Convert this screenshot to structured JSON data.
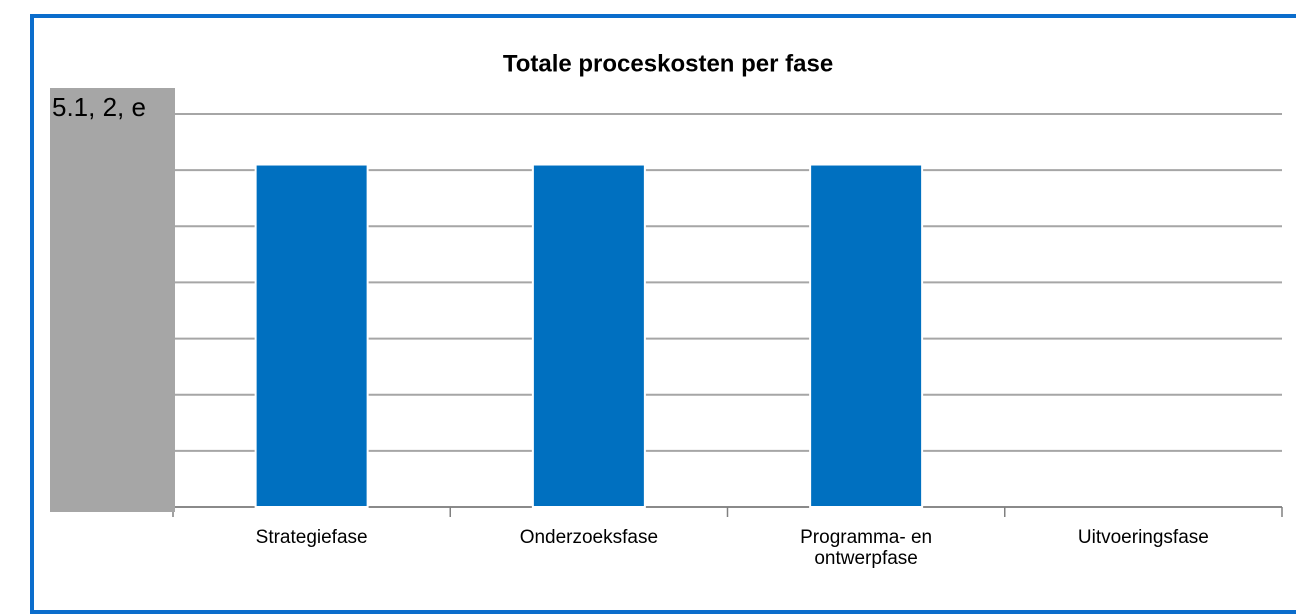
{
  "chart_data": {
    "type": "bar",
    "title": "Totale proceskosten per fase",
    "annotation": "5.1, 2, e",
    "categories": [
      "Strategiefase",
      "Onderzoeksfase",
      "Programma- en ontwerpfase",
      "Uitvoeringsfase"
    ],
    "values": [
      6.1,
      6.1,
      6.1,
      0
    ],
    "color": "#0070c0",
    "ylim": [
      0,
      7
    ],
    "yticks": [
      0,
      1,
      2,
      3,
      4,
      5,
      6,
      7
    ],
    "grid": true
  }
}
